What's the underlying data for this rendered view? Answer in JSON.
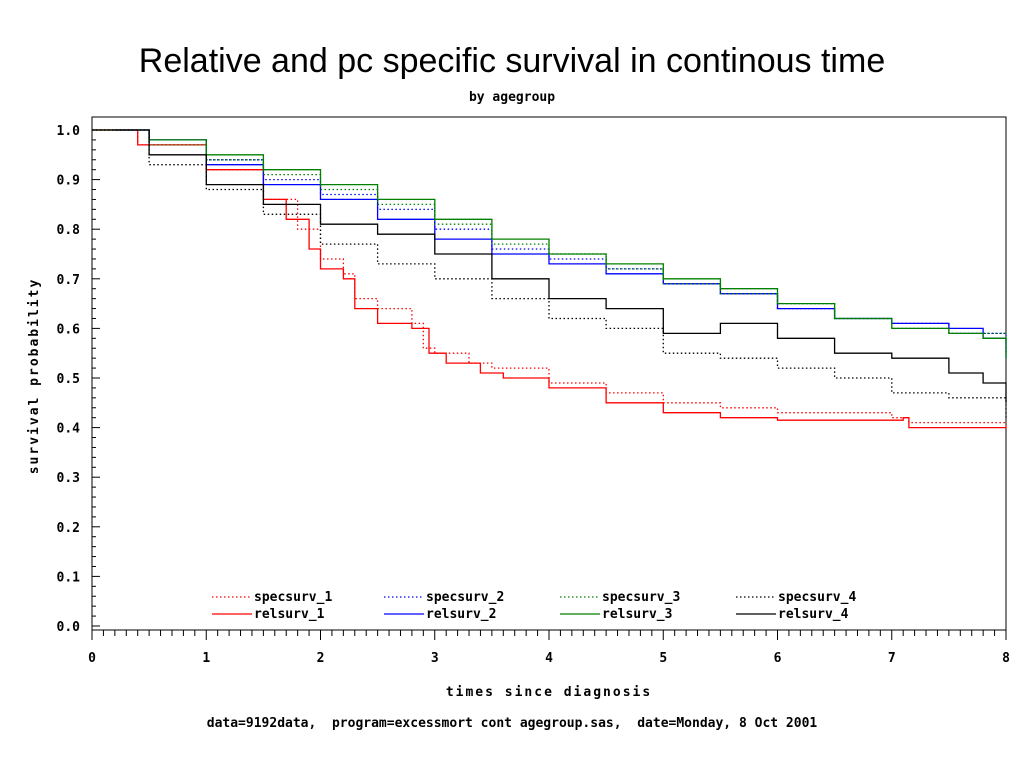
{
  "title": "Relative and pc specific survival in continous time",
  "subtitle": "by agegroup",
  "footer": "data=9192data,  program=excessmort cont agegroup.sas,  date=Monday, 8 Oct 2001",
  "chart_data": {
    "type": "line",
    "title": "Relative and pc specific survival in continous time",
    "subtitle": "by agegroup",
    "xlabel": "times since diagnosis",
    "ylabel": "survival probability",
    "xlim": [
      0,
      8
    ],
    "ylim": [
      0.0,
      1.0
    ],
    "x_ticks": [
      "0",
      "1",
      "2",
      "3",
      "4",
      "5",
      "6",
      "7",
      "8"
    ],
    "y_ticks": [
      "0.0",
      "0.1",
      "0.2",
      "0.3",
      "0.4",
      "0.5",
      "0.6",
      "0.7",
      "0.8",
      "0.9",
      "1.0"
    ],
    "grid": false,
    "legend_position": "bottom-inside",
    "series": [
      {
        "name": "specsurv_1",
        "color": "#ff0000",
        "dash": "dotted",
        "x": [
          0,
          0.4,
          1.0,
          1.5,
          1.8,
          2.0,
          2.2,
          2.3,
          2.5,
          2.8,
          2.9,
          3.0,
          3.3,
          3.5,
          4.0,
          4.5,
          5.0,
          5.5,
          6.0,
          7.0,
          7.15,
          8.0
        ],
        "y": [
          1.0,
          0.97,
          0.92,
          0.86,
          0.8,
          0.74,
          0.71,
          0.66,
          0.64,
          0.61,
          0.56,
          0.55,
          0.53,
          0.52,
          0.49,
          0.47,
          0.45,
          0.44,
          0.43,
          0.42,
          0.41,
          0.41
        ]
      },
      {
        "name": "relsurv_1",
        "color": "#ff0000",
        "dash": "solid",
        "x": [
          0,
          0.4,
          1.0,
          1.5,
          1.7,
          1.9,
          2.0,
          2.2,
          2.3,
          2.5,
          2.8,
          2.95,
          3.1,
          3.4,
          3.6,
          4.0,
          4.5,
          5.0,
          5.5,
          6.0,
          7.1,
          7.15,
          8.0
        ],
        "y": [
          1.0,
          0.97,
          0.92,
          0.86,
          0.82,
          0.76,
          0.72,
          0.7,
          0.64,
          0.61,
          0.6,
          0.55,
          0.53,
          0.51,
          0.5,
          0.48,
          0.45,
          0.43,
          0.42,
          0.415,
          0.42,
          0.4,
          0.405
        ]
      },
      {
        "name": "specsurv_2",
        "color": "#0000ff",
        "dash": "dotted",
        "x": [
          0.2,
          0.5,
          1.0,
          1.5,
          2.0,
          2.5,
          3.0,
          3.5,
          4.0,
          4.5,
          5.0,
          5.5,
          6.0,
          6.5,
          7.0,
          7.5,
          8.0
        ],
        "y": [
          1.0,
          0.98,
          0.94,
          0.9,
          0.87,
          0.84,
          0.8,
          0.76,
          0.74,
          0.72,
          0.69,
          0.67,
          0.64,
          0.62,
          0.61,
          0.59,
          0.55
        ]
      },
      {
        "name": "relsurv_2",
        "color": "#0000ff",
        "dash": "solid",
        "x": [
          0.2,
          0.5,
          1.0,
          1.5,
          2.0,
          2.5,
          3.0,
          3.5,
          4.0,
          4.5,
          5.0,
          5.5,
          6.0,
          6.5,
          7.0,
          7.5,
          7.8,
          8.0
        ],
        "y": [
          1.0,
          0.98,
          0.93,
          0.89,
          0.86,
          0.82,
          0.78,
          0.75,
          0.73,
          0.71,
          0.69,
          0.67,
          0.64,
          0.62,
          0.61,
          0.6,
          0.58,
          0.54
        ]
      },
      {
        "name": "specsurv_3",
        "color": "#008000",
        "dash": "dotted",
        "x": [
          0,
          0.5,
          1.0,
          1.5,
          2.0,
          2.5,
          3.0,
          3.5,
          4.0,
          4.5,
          5.0,
          5.5,
          6.0,
          6.5,
          7.0,
          7.5,
          8.0
        ],
        "y": [
          1.0,
          0.97,
          0.94,
          0.91,
          0.88,
          0.85,
          0.81,
          0.77,
          0.75,
          0.72,
          0.69,
          0.67,
          0.65,
          0.62,
          0.6,
          0.59,
          0.57
        ]
      },
      {
        "name": "relsurv_3",
        "color": "#008000",
        "dash": "solid",
        "x": [
          0,
          0.5,
          1.0,
          1.5,
          2.0,
          2.5,
          3.0,
          3.5,
          4.0,
          4.5,
          5.0,
          5.5,
          6.0,
          6.5,
          7.0,
          7.5,
          7.8,
          8.0
        ],
        "y": [
          1.0,
          0.98,
          0.95,
          0.92,
          0.89,
          0.86,
          0.82,
          0.78,
          0.75,
          0.73,
          0.7,
          0.68,
          0.65,
          0.62,
          0.6,
          0.59,
          0.58,
          0.54
        ]
      },
      {
        "name": "specsurv_4",
        "color": "#000000",
        "dash": "dotted",
        "x": [
          0,
          0.5,
          1.0,
          1.5,
          2.0,
          2.5,
          3.0,
          3.5,
          4.0,
          4.5,
          5.0,
          5.5,
          6.0,
          6.5,
          7.0,
          7.5,
          8.0
        ],
        "y": [
          1.0,
          0.93,
          0.88,
          0.83,
          0.77,
          0.73,
          0.7,
          0.66,
          0.62,
          0.6,
          0.55,
          0.54,
          0.52,
          0.5,
          0.47,
          0.46,
          0.42
        ]
      },
      {
        "name": "relsurv_4",
        "color": "#000000",
        "dash": "solid",
        "x": [
          0,
          0.5,
          1.0,
          1.5,
          2.0,
          2.5,
          3.0,
          3.5,
          4.0,
          4.5,
          5.0,
          5.5,
          6.0,
          6.5,
          7.0,
          7.5,
          7.8,
          8.0
        ],
        "y": [
          1.0,
          0.95,
          0.89,
          0.85,
          0.81,
          0.79,
          0.75,
          0.7,
          0.66,
          0.64,
          0.59,
          0.61,
          0.58,
          0.55,
          0.54,
          0.51,
          0.49,
          0.45
        ]
      }
    ]
  }
}
